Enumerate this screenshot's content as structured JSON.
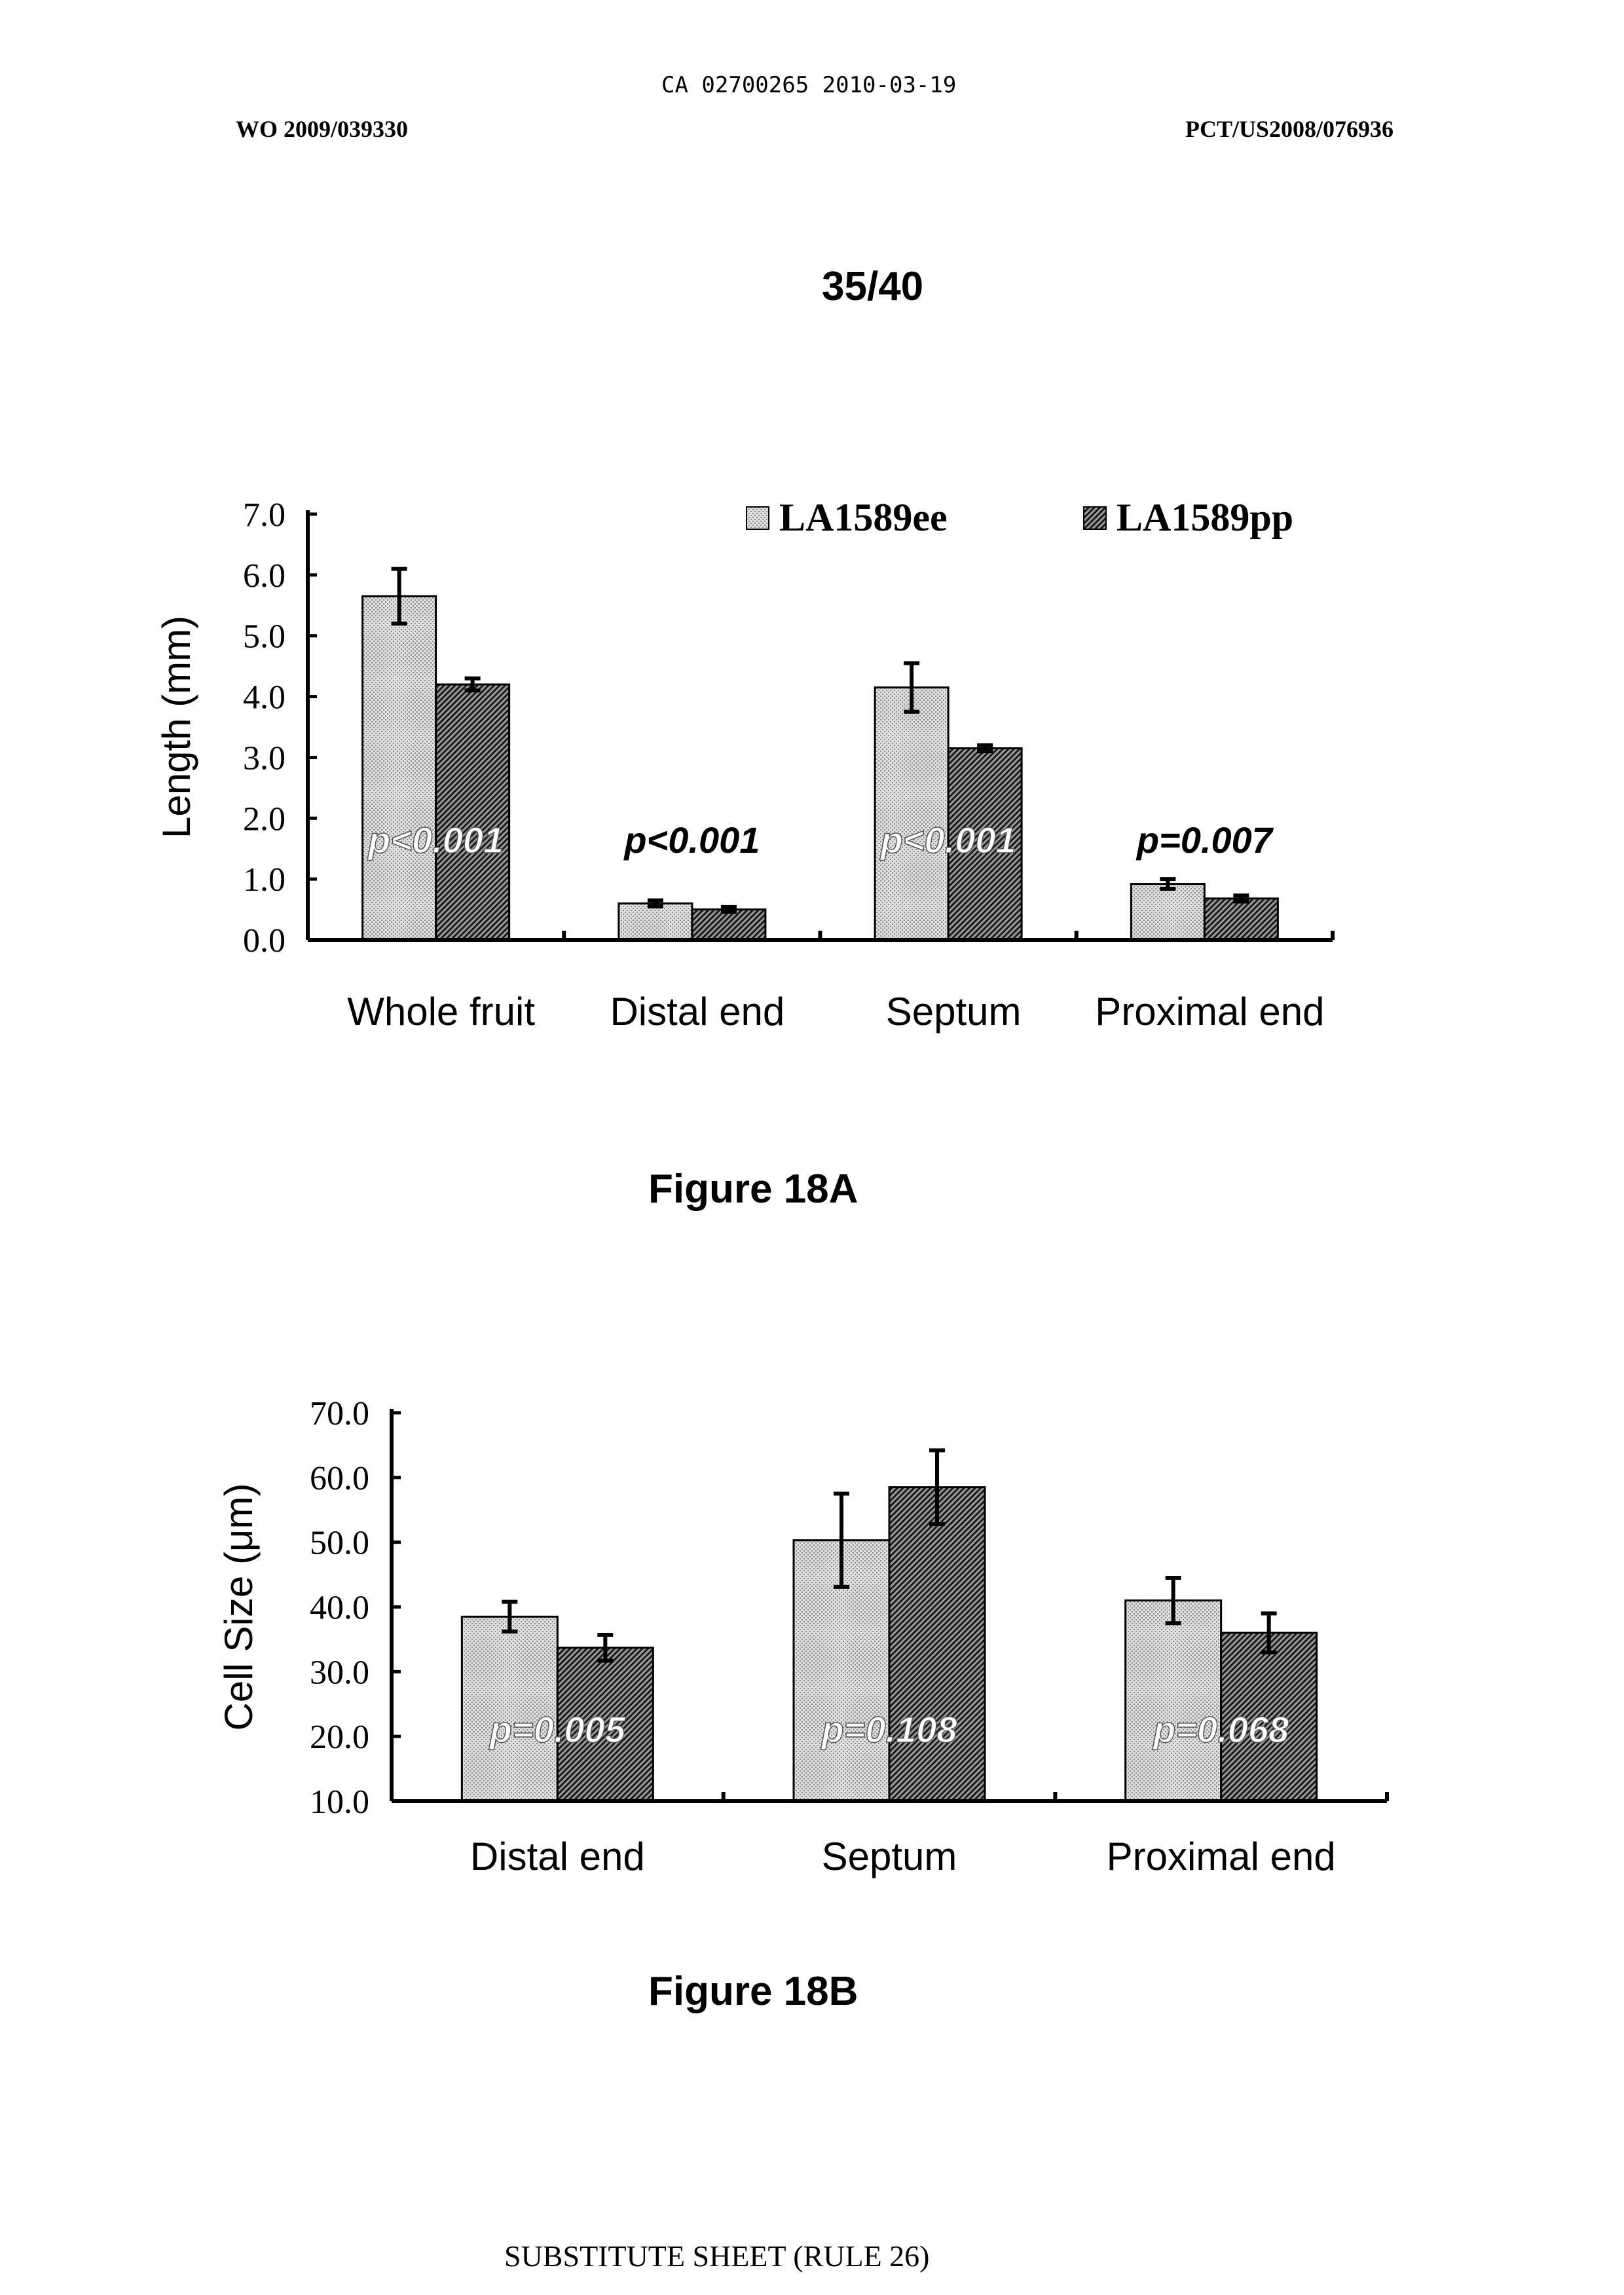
{
  "header": {
    "doc_id": "CA 02700265 2010-03-19",
    "pub_number": "WO 2009/039330",
    "app_number": "PCT/US2008/076936",
    "page": "35/40"
  },
  "legend": {
    "ee": "LA1589ee",
    "pp": "LA1589pp"
  },
  "figures": {
    "a_caption": "Figure 18A",
    "b_caption": "Figure 18B"
  },
  "footer": "SUBSTITUTE SHEET (RULE 26)",
  "colors": {
    "ee_fill": "#d4d4d4",
    "pp_fill": "#666666",
    "axis": "#000000"
  },
  "chart_data": [
    {
      "type": "bar",
      "title": "",
      "ylabel": "Length (mm)",
      "xlabel": "",
      "ylim": [
        0,
        7
      ],
      "yticks": [
        "0.0",
        "1.0",
        "2.0",
        "3.0",
        "4.0",
        "5.0",
        "6.0",
        "7.0"
      ],
      "categories": [
        "Whole fruit",
        "Distal end",
        "Septum",
        "Proximal end"
      ],
      "series": [
        {
          "name": "LA1589ee",
          "values": [
            5.65,
            0.6,
            4.15,
            0.92
          ],
          "errors": [
            0.45,
            0.05,
            0.4,
            0.08
          ]
        },
        {
          "name": "LA1589pp",
          "values": [
            4.2,
            0.5,
            3.15,
            0.68
          ],
          "errors": [
            0.1,
            0.04,
            0.05,
            0.05
          ]
        }
      ],
      "annotations": [
        "p<0.001",
        "p<0.001",
        "p<0.001",
        "p=0.007"
      ],
      "legend": "top-right"
    },
    {
      "type": "bar",
      "title": "",
      "ylabel": "Cell Size (μm)",
      "xlabel": "",
      "ylim": [
        10,
        70
      ],
      "yticks": [
        "10.0",
        "20.0",
        "30.0",
        "40.0",
        "50.0",
        "60.0",
        "70.0"
      ],
      "categories": [
        "Distal end",
        "Septum",
        "Proximal end"
      ],
      "series": [
        {
          "name": "LA1589ee",
          "values": [
            38.5,
            50.3,
            41.0
          ],
          "errors": [
            2.3,
            7.2,
            3.5
          ]
        },
        {
          "name": "LA1589pp",
          "values": [
            33.7,
            58.5,
            36.0
          ],
          "errors": [
            2.0,
            5.7,
            3.0
          ]
        }
      ],
      "annotations": [
        "p=0.005",
        "p=0.108",
        "p=0.068"
      ]
    }
  ]
}
